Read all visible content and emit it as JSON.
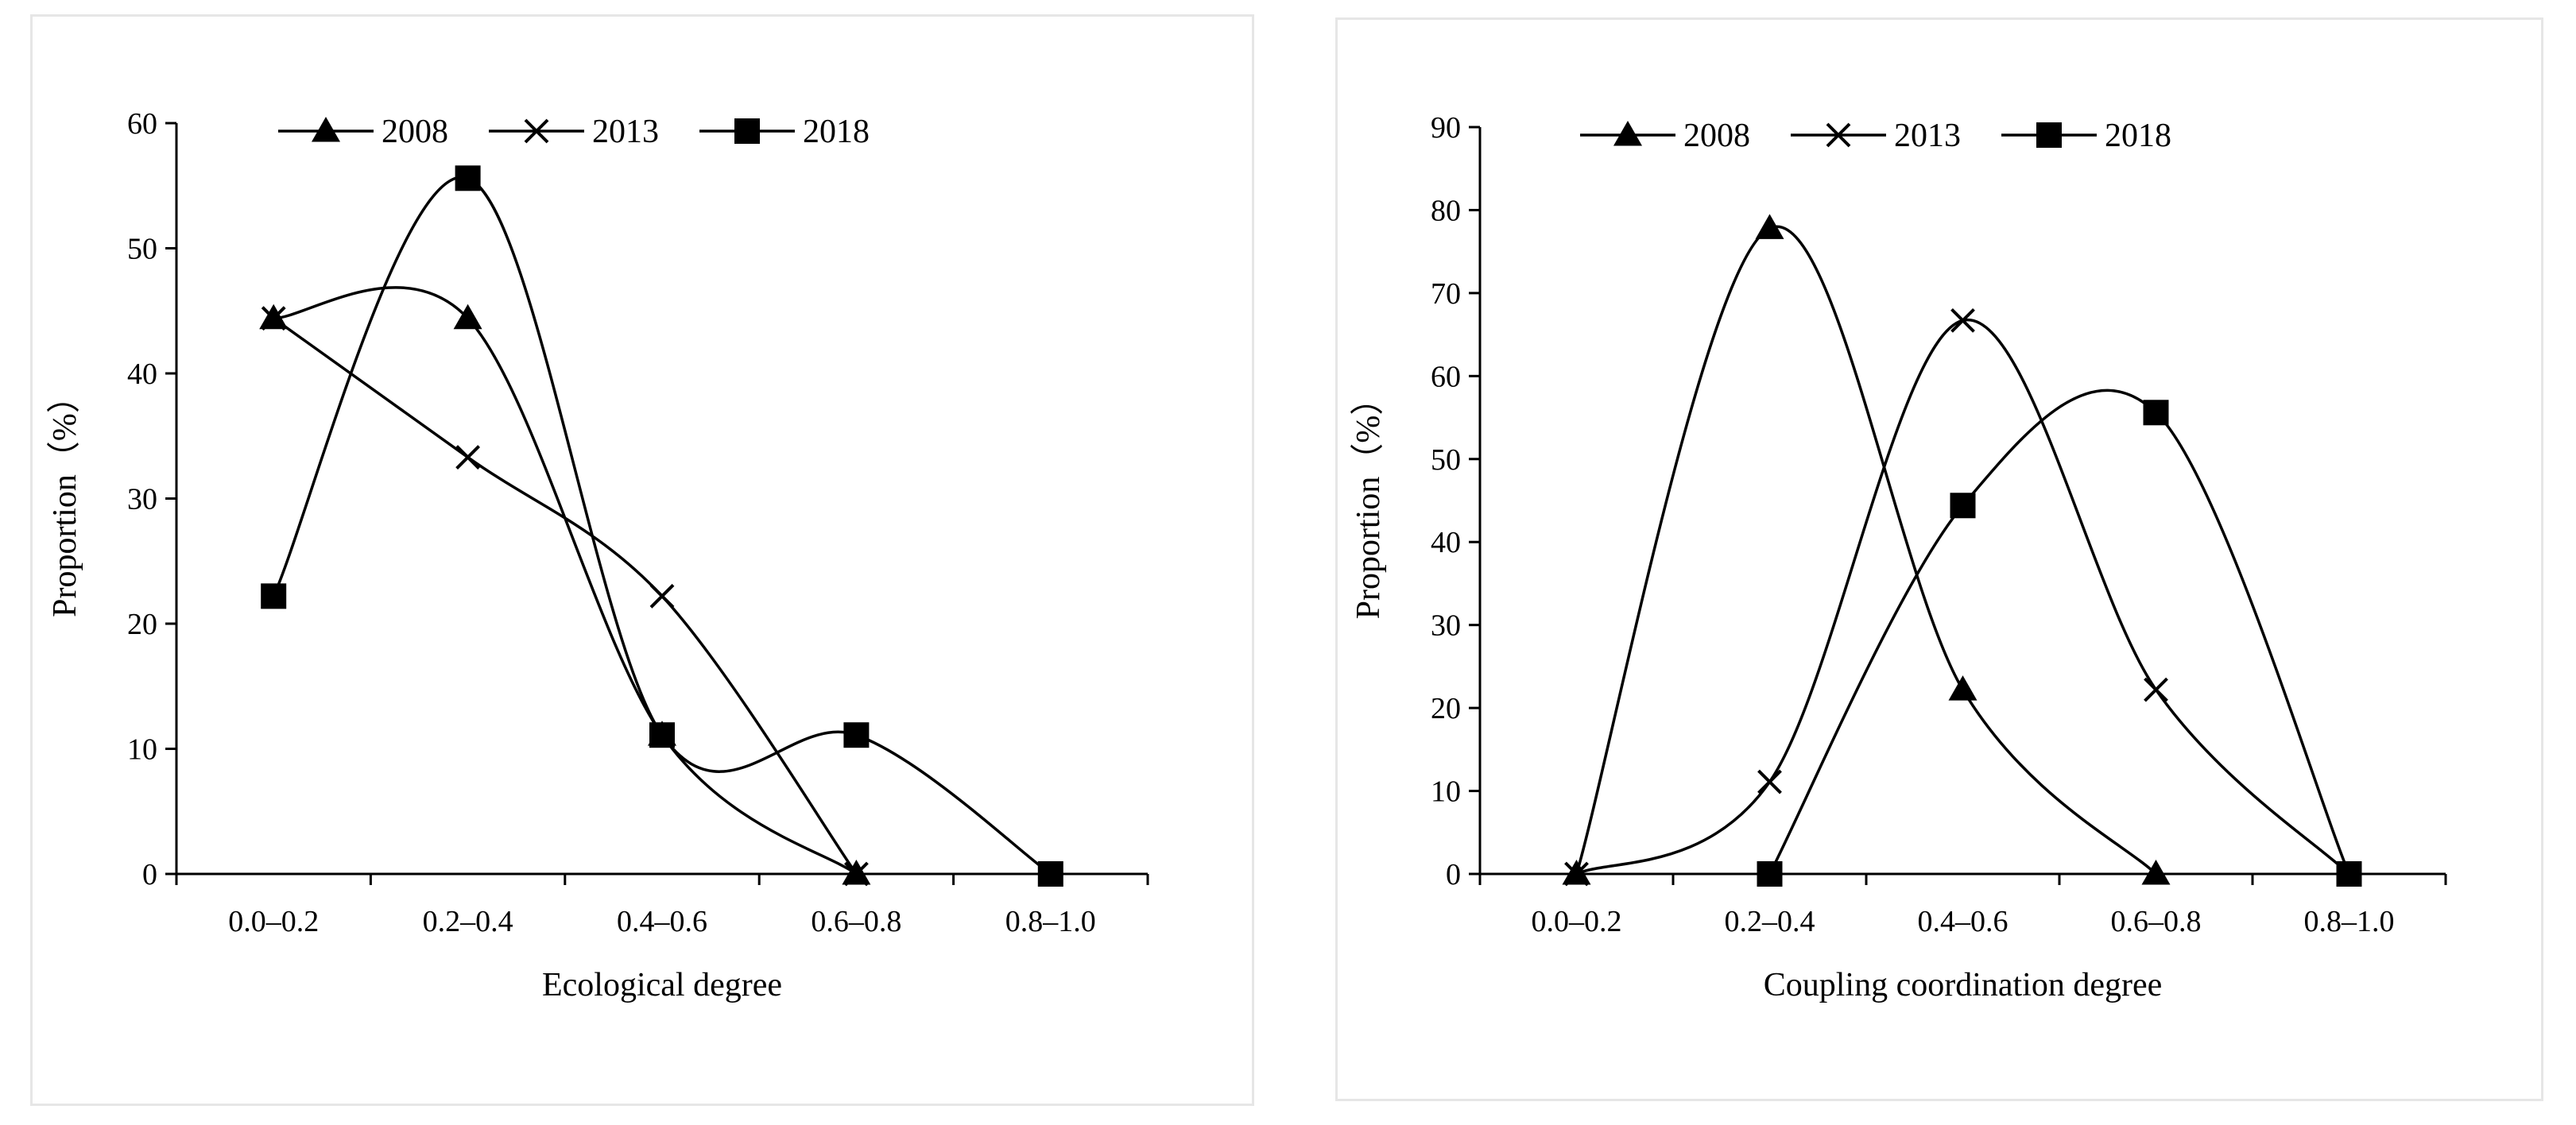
{
  "chart_data": [
    {
      "type": "line",
      "smooth": true,
      "xlabel": "Ecological degree",
      "ylabel": "Proportion（%）",
      "categories": [
        "0.0–0.2",
        "0.2–0.4",
        "0.4–0.6",
        "0.6–0.8",
        "0.8–1.0"
      ],
      "ylim": [
        0,
        60
      ],
      "yticks": [
        0,
        10,
        20,
        30,
        40,
        50,
        60
      ],
      "legend_position": "top",
      "series": [
        {
          "name": "2008",
          "marker": "triangle",
          "values": [
            44.4,
            44.4,
            11.1,
            0,
            null
          ]
        },
        {
          "name": "2013",
          "marker": "x",
          "values": [
            44.4,
            33.3,
            22.2,
            0,
            null
          ]
        },
        {
          "name": "2018",
          "marker": "square",
          "values": [
            22.2,
            55.6,
            11.1,
            11.1,
            0
          ]
        }
      ]
    },
    {
      "type": "line",
      "smooth": true,
      "xlabel": "Coupling coordination degree",
      "ylabel": "Proportion（%）",
      "categories": [
        "0.0–0.2",
        "0.2–0.4",
        "0.4–0.6",
        "0.6–0.8",
        "0.8–1.0"
      ],
      "ylim": [
        0,
        90
      ],
      "yticks": [
        0,
        10,
        20,
        30,
        40,
        50,
        60,
        70,
        80,
        90
      ],
      "legend_position": "top",
      "series": [
        {
          "name": "2008",
          "marker": "triangle",
          "values": [
            0,
            77.8,
            22.2,
            0,
            null
          ]
        },
        {
          "name": "2013",
          "marker": "x",
          "values": [
            0,
            11.1,
            66.7,
            22.2,
            0
          ]
        },
        {
          "name": "2018",
          "marker": "square",
          "values": [
            null,
            0,
            44.4,
            55.6,
            0
          ]
        }
      ]
    }
  ]
}
